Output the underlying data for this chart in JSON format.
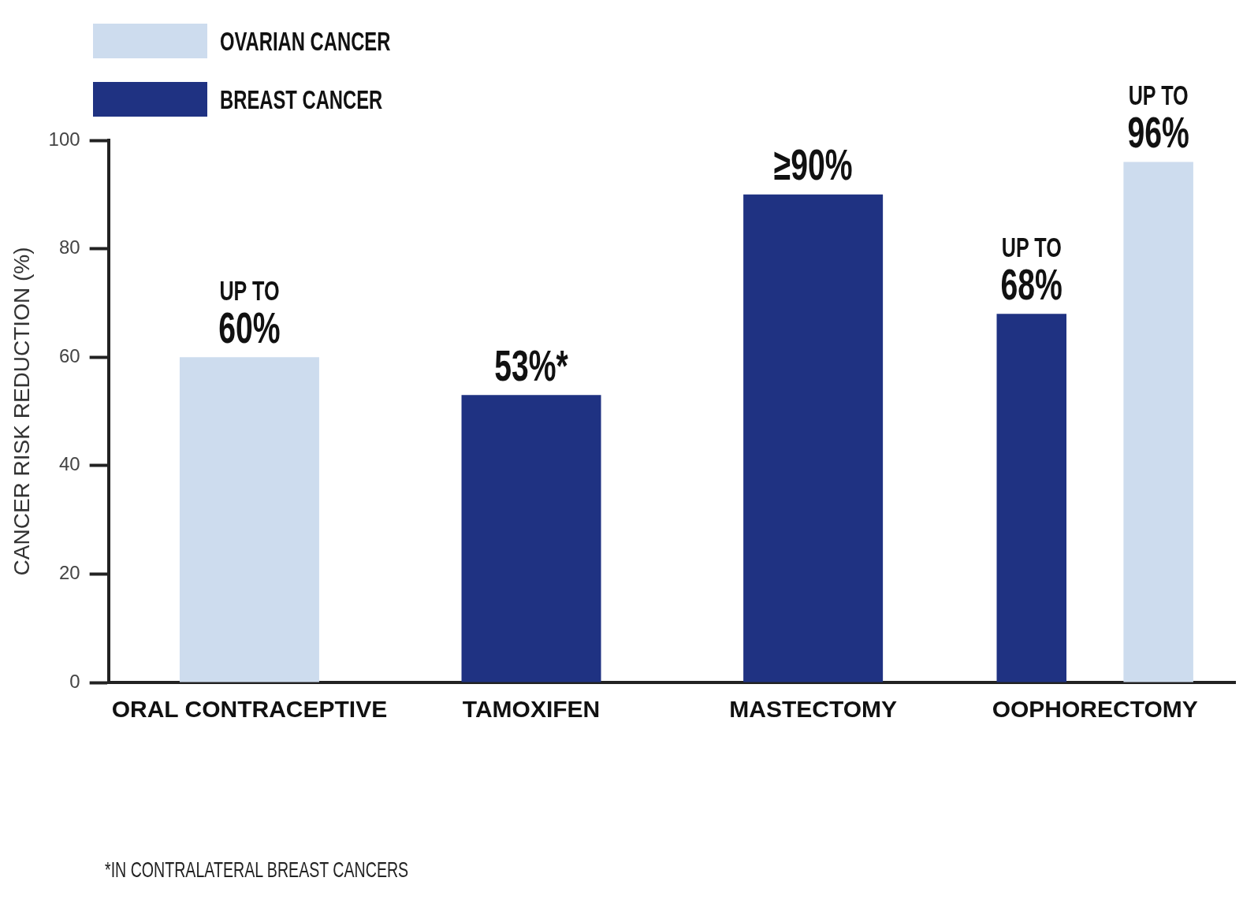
{
  "chart_data": {
    "type": "bar",
    "ylabel": "CANCER RISK REDUCTION (%)",
    "categories": [
      "ORAL CONTRACEPTIVE",
      "TAMOXIFEN",
      "MASTECTOMY",
      "OOPHORECTOMY"
    ],
    "series": [
      {
        "name": "BREAST CANCER",
        "color": "#1f3282",
        "values": [
          null,
          53,
          90,
          68
        ],
        "value_labels": [
          null,
          "53%*",
          "≥90%",
          "UP TO\n68%"
        ]
      },
      {
        "name": "OVARIAN CANCER",
        "color": "#cddcee",
        "values": [
          60,
          null,
          null,
          96
        ],
        "value_labels": [
          "UP TO\n60%",
          null,
          null,
          "UP TO\n96%"
        ]
      }
    ],
    "ylim": [
      0,
      100
    ],
    "yticks": [
      0,
      20,
      40,
      60,
      80,
      100
    ],
    "grid": false,
    "legend": "top left",
    "annotations": [
      "*IN CONTRALATERAL BREAST CANCERS"
    ]
  }
}
